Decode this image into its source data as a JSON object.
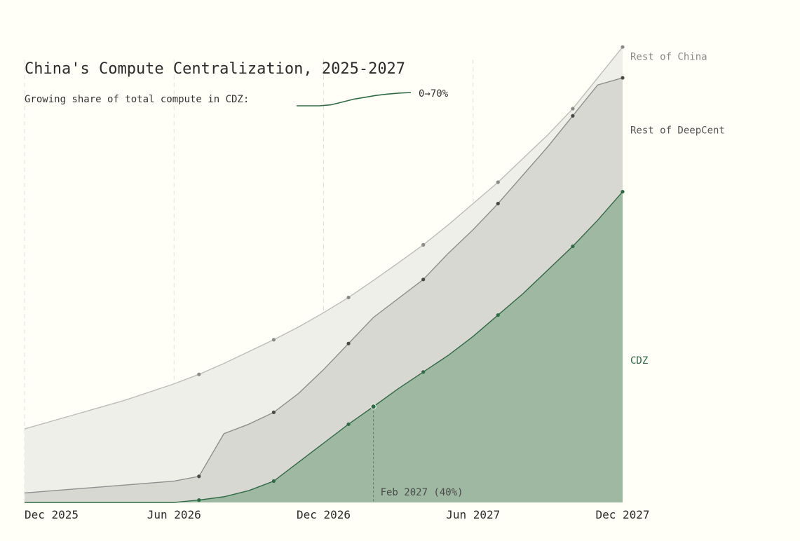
{
  "chart_data": {
    "type": "area",
    "title": "China's Compute Centralization, 2025-2027",
    "subtitle": "Growing share of total compute in CDZ:",
    "sparkline_label": "0→70%",
    "sparkline_share": [
      0,
      0,
      0,
      0.05,
      0.2,
      0.35,
      0.45,
      0.55,
      0.62,
      0.67,
      0.7
    ],
    "x_ticks": [
      {
        "label": "Dec 2025",
        "x": 0
      },
      {
        "label": "Jun 2026",
        "x": 6
      },
      {
        "label": "Dec 2026",
        "x": 12
      },
      {
        "label": "Jun 2027",
        "x": 18
      },
      {
        "label": "Dec 2027",
        "x": 24
      }
    ],
    "xlim": [
      0,
      24
    ],
    "ylim": [
      0,
      100
    ],
    "xlabel": "",
    "ylabel": "",
    "series": [
      {
        "name": "CDZ",
        "color": "#2e6b45",
        "fill": "#9fb8a2",
        "x": [
          0,
          6,
          7,
          8,
          9,
          10,
          11,
          12,
          13,
          14,
          15,
          16,
          17,
          18,
          19,
          20,
          21,
          22,
          23,
          24
        ],
        "values": [
          0,
          0,
          0.5,
          1.2,
          2.5,
          4.5,
          8.5,
          12.5,
          16.5,
          20.2,
          24,
          27.5,
          31,
          35,
          39.5,
          44,
          49,
          54,
          59.5,
          65.5
        ],
        "markers": [
          7,
          10,
          13,
          14,
          16,
          19,
          22,
          24
        ]
      },
      {
        "name": "Rest of DeepCent",
        "color": "#8f8f8f",
        "fill": "#d8d8d3",
        "x": [
          0,
          6,
          7,
          8,
          9,
          10,
          11,
          12,
          13,
          14,
          15,
          16,
          17,
          18,
          19,
          20,
          21,
          22,
          23,
          24
        ],
        "values": [
          2,
          4.5,
          5.5,
          14.5,
          16.5,
          19,
          23,
          28,
          33.5,
          39,
          43,
          47,
          52.5,
          57.5,
          63,
          69,
          75,
          81.5,
          88,
          89.5
        ],
        "markers": [
          7,
          10,
          13,
          16,
          19,
          22,
          24
        ]
      },
      {
        "name": "Rest of China",
        "color": "#bdbdb8",
        "fill": "#efefea",
        "x": [
          0,
          2,
          4,
          6,
          7,
          8,
          9,
          10,
          11,
          12,
          13,
          14,
          15,
          16,
          17,
          18,
          19,
          20,
          21,
          22,
          23,
          24
        ],
        "values": [
          15.5,
          18.5,
          21.5,
          25,
          27,
          29.3,
          31.8,
          34.3,
          37,
          40,
          43.2,
          46.8,
          50.5,
          54.3,
          58.5,
          63,
          67.5,
          72.5,
          77.5,
          83,
          89.5,
          96
        ],
        "markers": [
          7,
          10,
          13,
          16,
          19,
          22,
          24
        ]
      }
    ],
    "annotation": {
      "label": "Feb 2027 (40%)",
      "x": 14,
      "value": 20.2
    }
  }
}
